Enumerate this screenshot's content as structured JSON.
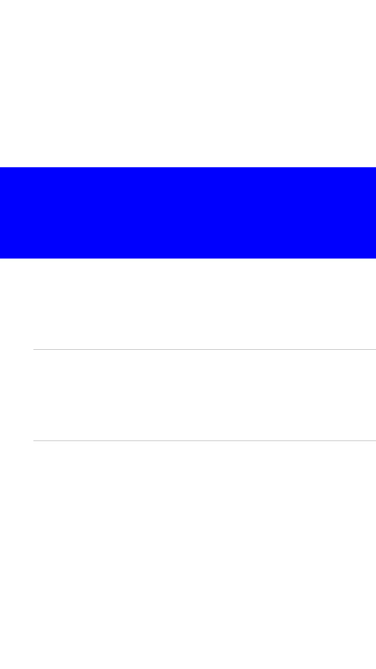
{
  "colors": {
    "background": "#ffffff",
    "selected_row": "#0000ff",
    "divider": "#c8c8c8"
  },
  "list": {
    "items": [
      {
        "label": "",
        "selected": true
      },
      {
        "label": "",
        "selected": false
      },
      {
        "label": "",
        "selected": false
      }
    ]
  }
}
